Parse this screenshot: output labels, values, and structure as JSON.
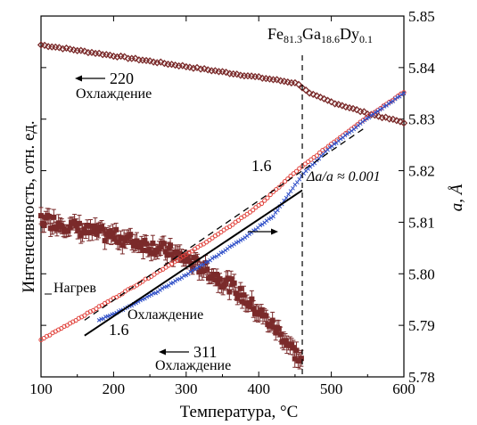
{
  "chart_data": {
    "type": "scatter",
    "title": "",
    "xlabel": "Температура, °C",
    "ylabel_left": "Интенсивность, отн. ед.",
    "ylabel_right": "a, Å",
    "xlim": [
      100,
      600
    ],
    "ylim_right": [
      5.78,
      5.85
    ],
    "x_ticks": [
      "100",
      "200",
      "300",
      "400",
      "500",
      "600"
    ],
    "y_right_ticks": [
      "5.78",
      "5.79",
      "5.80",
      "5.81",
      "5.82",
      "5.83",
      "5.84",
      "5.85"
    ],
    "grid": false,
    "compound": {
      "base": "Fe",
      "n1": "81.3",
      "el2": "Ga",
      "n2": "18.6",
      "el3": "Dy",
      "n3": "0.1"
    },
    "series": [
      {
        "name": "220 Охлаждение",
        "axis": "left",
        "marker": "diamond",
        "color": "#7a2a2a",
        "x": [
          100,
          150,
          200,
          250,
          300,
          350,
          400,
          440,
          455,
          460,
          470,
          500,
          550,
          600
        ],
        "y_rel": [
          0.92,
          0.905,
          0.89,
          0.875,
          0.86,
          0.845,
          0.83,
          0.818,
          0.812,
          0.802,
          0.785,
          0.762,
          0.73,
          0.705
        ]
      },
      {
        "name": "311 Охлаждение",
        "axis": "left",
        "marker": "square-errorbar",
        "color": "#7a2a2a",
        "x": [
          100,
          130,
          160,
          200,
          240,
          280,
          320,
          360,
          400,
          430,
          460
        ],
        "y_rel": [
          0.435,
          0.425,
          0.405,
          0.39,
          0.37,
          0.345,
          0.305,
          0.255,
          0.18,
          0.12,
          0.04
        ]
      },
      {
        "name": "Нагрев",
        "axis": "right",
        "marker": "circle",
        "color": "#e0413a",
        "x": [
          100,
          150,
          200,
          250,
          300,
          350,
          400,
          450,
          500,
          550,
          600
        ],
        "y": [
          5.7872,
          5.7912,
          5.7952,
          5.7994,
          5.8037,
          5.8082,
          5.8132,
          5.8197,
          5.8252,
          5.8305,
          5.8352
        ]
      },
      {
        "name": "Охлаждение",
        "axis": "right",
        "marker": "cross",
        "color": "#3050c8",
        "x": [
          180,
          220,
          260,
          300,
          340,
          380,
          420,
          460,
          500,
          550,
          600
        ],
        "y": [
          5.791,
          5.7935,
          5.7965,
          5.7998,
          5.8033,
          5.807,
          5.8112,
          5.8192,
          5.8247,
          5.8302,
          5.835
        ]
      }
    ],
    "fit_lines": [
      {
        "label": "1.6",
        "style": "solid",
        "x": [
          160,
          460
        ],
        "y": [
          5.788,
          5.8162
        ]
      },
      {
        "label": "1.6",
        "style": "dashed",
        "x": [
          160,
          545
        ],
        "y": [
          5.791,
          5.8282
        ]
      }
    ],
    "vline": {
      "x": 460,
      "style": "dashed"
    },
    "annotations": {
      "label_220": "220",
      "label_220_sub": "Охлаждение",
      "label_311": "311",
      "label_311_sub": "Охлаждение",
      "label_heat": "Нагрев",
      "label_cool": "Охлаждение",
      "label_slope_top": "1.6",
      "label_slope_bottom": "1.6",
      "delta": "Δa/a ≈ 0.001"
    }
  }
}
